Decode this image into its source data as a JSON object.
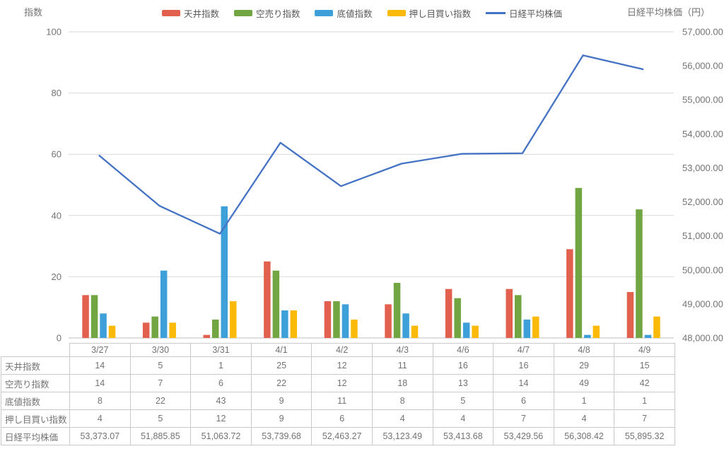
{
  "axis_titles": {
    "left": "指数",
    "right": "日経平均株価（円）"
  },
  "chart_data": {
    "type": "combo",
    "title": "",
    "legend_position": "top",
    "grid": true,
    "categories": [
      "3/27",
      "3/30",
      "3/31",
      "4/1",
      "4/2",
      "4/3",
      "4/6",
      "4/7",
      "4/8",
      "4/9"
    ],
    "series": [
      {
        "name": "天井指数",
        "type": "bar",
        "color": "#E2604E",
        "values": [
          14,
          5,
          1,
          25,
          12,
          11,
          16,
          16,
          29,
          15
        ]
      },
      {
        "name": "空売り指数",
        "type": "bar",
        "color": "#71A642",
        "values": [
          14,
          7,
          6,
          22,
          12,
          18,
          13,
          14,
          49,
          42
        ]
      },
      {
        "name": "底値指数",
        "type": "bar",
        "color": "#3EA0D8",
        "values": [
          8,
          22,
          43,
          9,
          11,
          8,
          5,
          6,
          1,
          1
        ]
      },
      {
        "name": "押し目買い指数",
        "type": "bar",
        "color": "#FBBA09",
        "values": [
          4,
          5,
          12,
          9,
          6,
          4,
          4,
          7,
          4,
          7
        ]
      },
      {
        "name": "日経平均株価",
        "type": "line",
        "axis": "right",
        "color": "#4472C4",
        "values": [
          53373.07,
          51885.85,
          51063.72,
          53739.68,
          52463.27,
          53123.49,
          53413.68,
          53429.56,
          56308.42,
          55895.32
        ]
      }
    ],
    "left_axis": {
      "title": "指数",
      "min": 0,
      "max": 100,
      "ticks": [
        100,
        80,
        60,
        40,
        20,
        0
      ]
    },
    "right_axis": {
      "title": "日経平均株価（円）",
      "min": 48000,
      "max": 57000,
      "tick_labels": [
        "57,000.00",
        "56,000.00",
        "55,000.00",
        "54,000.00",
        "53,000.00",
        "52,000.00",
        "51,000.00",
        "50,000.00",
        "49,000.00",
        "48,000.00"
      ]
    }
  },
  "table": {
    "columns": [
      "3/27",
      "3/30",
      "3/31",
      "4/1",
      "4/2",
      "4/3",
      "4/6",
      "4/7",
      "4/8",
      "4/9"
    ],
    "rows": [
      {
        "label": "天井指数",
        "values": [
          "14",
          "5",
          "1",
          "25",
          "12",
          "11",
          "16",
          "16",
          "29",
          "15"
        ]
      },
      {
        "label": "空売り指数",
        "values": [
          "14",
          "7",
          "6",
          "22",
          "12",
          "18",
          "13",
          "14",
          "49",
          "42"
        ]
      },
      {
        "label": "底値指数",
        "values": [
          "8",
          "22",
          "43",
          "9",
          "11",
          "8",
          "5",
          "6",
          "1",
          "1"
        ]
      },
      {
        "label": "押し目買い指数",
        "values": [
          "4",
          "5",
          "12",
          "9",
          "6",
          "4",
          "4",
          "7",
          "4",
          "7"
        ]
      },
      {
        "label": "日経平均株価",
        "values": [
          "53,373.07",
          "51,885.85",
          "51,063.72",
          "53,739.68",
          "52,463.27",
          "53,123.49",
          "53,413.68",
          "53,429.56",
          "56,308.42",
          "55,895.32"
        ]
      }
    ]
  }
}
